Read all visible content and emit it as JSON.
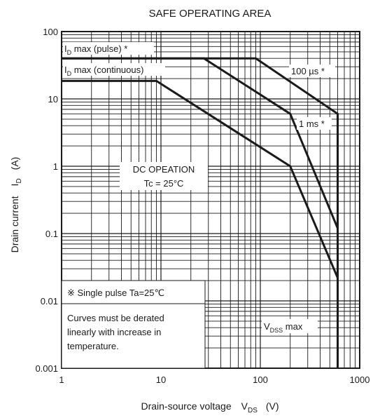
{
  "chart_data": {
    "type": "line",
    "title": "SAFE OPERATING AREA",
    "x_scale": "log",
    "y_scale": "log",
    "xlim": [
      1,
      1000
    ],
    "ylim": [
      0.001,
      100
    ],
    "xlabel": {
      "main": "Drain-source voltage",
      "sym": "V",
      "sub": "DS",
      "unit": "(V)"
    },
    "ylabel": {
      "main": "Drain current",
      "sym": "I",
      "sub": "D",
      "unit": "(A)"
    },
    "x_ticks": [
      {
        "v": 1,
        "label": "1"
      },
      {
        "v": 10,
        "label": "10"
      },
      {
        "v": 100,
        "label": "100"
      },
      {
        "v": 1000,
        "label": "1000"
      }
    ],
    "y_ticks": [
      {
        "v": 100,
        "label": "100"
      },
      {
        "v": 10,
        "label": "10"
      },
      {
        "v": 1,
        "label": "1"
      },
      {
        "v": 0.1,
        "label": "0.1"
      },
      {
        "v": 0.01,
        "label": "0.01"
      },
      {
        "v": 0.001,
        "label": "0.001"
      }
    ],
    "grid": true,
    "series": [
      {
        "name": "100 µs *",
        "points": [
          [
            1,
            40
          ],
          [
            90,
            40
          ],
          [
            600,
            6
          ],
          [
            600,
            0.001
          ]
        ]
      },
      {
        "name": "1 ms *",
        "points": [
          [
            1,
            40
          ],
          [
            27,
            40
          ],
          [
            200,
            6
          ],
          [
            600,
            0.12
          ],
          [
            600,
            0.001
          ]
        ]
      },
      {
        "name": "DC OPEATION Tc = 25°C",
        "points": [
          [
            1,
            18.5
          ],
          [
            9,
            18.5
          ],
          [
            200,
            1
          ],
          [
            600,
            0.022
          ],
          [
            600,
            0.001
          ]
        ]
      }
    ],
    "annotations": {
      "id_pulse": {
        "sym": "I",
        "sub": "D",
        "text": " max (pulse) *"
      },
      "id_cont": {
        "sym": "I",
        "sub": "D",
        "text": " max (continuous)"
      },
      "t100us": "100 µs *",
      "t1ms": "1 ms *",
      "dc_line1": "DC OPEATION",
      "dc_line2": "Tc = 25°C",
      "note1": "※  Single pulse Ta=25℃",
      "note2_l1": "Curves must be derated",
      "note2_l2": "linearly with increase in",
      "note2_l3": "temperature.",
      "vdss": {
        "sym": "V",
        "sub": "DSS",
        "text": " max"
      }
    }
  }
}
